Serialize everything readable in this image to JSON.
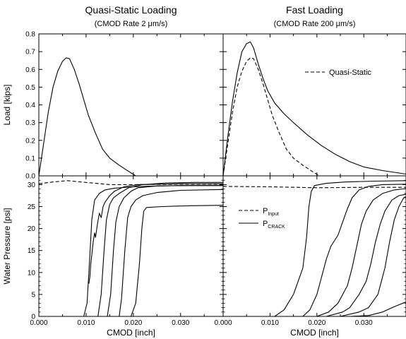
{
  "chart_data": [
    {
      "type": "line",
      "panel": "top-left",
      "title": "Quasi-Static Loading",
      "subtitle": "(CMOD Rate 2 μm/s)",
      "xlabel": "",
      "ylabel": "Load [kips]",
      "xlim": [
        0,
        0.039
      ],
      "ylim": [
        0,
        0.8
      ],
      "yticks": [
        "0.0",
        "0.1",
        "0.2",
        "0.3",
        "0.4",
        "0.5",
        "0.6",
        "0.7",
        "0.8"
      ],
      "series": [
        {
          "style": "solid",
          "points": [
            [
              0.0,
              0.0
            ],
            [
              0.001,
              0.18
            ],
            [
              0.002,
              0.36
            ],
            [
              0.003,
              0.5
            ],
            [
              0.004,
              0.59
            ],
            [
              0.005,
              0.645
            ],
            [
              0.0058,
              0.665
            ],
            [
              0.0065,
              0.66
            ],
            [
              0.0075,
              0.6
            ],
            [
              0.0085,
              0.52
            ],
            [
              0.0095,
              0.43
            ],
            [
              0.0105,
              0.34
            ],
            [
              0.012,
              0.24
            ],
            [
              0.0135,
              0.15
            ],
            [
              0.015,
              0.1
            ],
            [
              0.017,
              0.06
            ],
            [
              0.019,
              0.025
            ],
            [
              0.0205,
              0.0
            ]
          ]
        }
      ]
    },
    {
      "type": "line",
      "panel": "top-right",
      "title": "Fast Loading",
      "subtitle": "(CMOD Rate 200 μm/s)",
      "xlabel": "",
      "ylabel": "",
      "xlim": [
        0,
        0.039
      ],
      "ylim": [
        0,
        0.8
      ],
      "legend": [
        {
          "label": "Quasi-Static",
          "style": "dashed"
        }
      ],
      "series": [
        {
          "style": "solid",
          "points": [
            [
              0.0,
              0.0
            ],
            [
              0.001,
              0.22
            ],
            [
              0.002,
              0.42
            ],
            [
              0.003,
              0.58
            ],
            [
              0.004,
              0.7
            ],
            [
              0.005,
              0.745
            ],
            [
              0.0058,
              0.755
            ],
            [
              0.0065,
              0.72
            ],
            [
              0.0075,
              0.63
            ],
            [
              0.0085,
              0.55
            ],
            [
              0.0095,
              0.48
            ],
            [
              0.011,
              0.41
            ],
            [
              0.013,
              0.35
            ],
            [
              0.015,
              0.3
            ],
            [
              0.018,
              0.23
            ],
            [
              0.021,
              0.17
            ],
            [
              0.024,
              0.12
            ],
            [
              0.027,
              0.08
            ],
            [
              0.03,
              0.05
            ],
            [
              0.034,
              0.03
            ],
            [
              0.039,
              0.01
            ]
          ]
        },
        {
          "name": "Quasi-Static",
          "style": "dashed",
          "points": [
            [
              0.0,
              0.0
            ],
            [
              0.001,
              0.18
            ],
            [
              0.002,
              0.36
            ],
            [
              0.003,
              0.5
            ],
            [
              0.004,
              0.59
            ],
            [
              0.005,
              0.645
            ],
            [
              0.0058,
              0.665
            ],
            [
              0.0065,
              0.66
            ],
            [
              0.0075,
              0.6
            ],
            [
              0.0085,
              0.52
            ],
            [
              0.0095,
              0.43
            ],
            [
              0.0105,
              0.34
            ],
            [
              0.012,
              0.24
            ],
            [
              0.0135,
              0.15
            ],
            [
              0.015,
              0.1
            ],
            [
              0.017,
              0.06
            ],
            [
              0.019,
              0.025
            ],
            [
              0.0205,
              0.0
            ]
          ]
        }
      ]
    },
    {
      "type": "line",
      "panel": "bottom-left",
      "xlabel": "CMOD [inch]",
      "ylabel": "Water Pressure [psi]",
      "xlim": [
        0,
        0.039
      ],
      "ylim": [
        0,
        32
      ],
      "xticks": [
        "0.000",
        "0.010",
        "0.020",
        "0.030"
      ],
      "yticks": [
        "0",
        "5",
        "10",
        "15",
        "20",
        "25",
        "30"
      ],
      "series": [
        {
          "style": "dashed",
          "points": [
            [
              0.0,
              30.2
            ],
            [
              0.003,
              30.6
            ],
            [
              0.006,
              30.9
            ],
            [
              0.01,
              30.5
            ],
            [
              0.015,
              30.0
            ],
            [
              0.02,
              30.0
            ],
            [
              0.03,
              30.1
            ],
            [
              0.039,
              30.1
            ]
          ]
        },
        {
          "style": "solid",
          "points": [
            [
              0.0,
              0.0
            ],
            [
              0.0095,
              0.0
            ],
            [
              0.0102,
              3.0
            ],
            [
              0.0108,
              14.0
            ],
            [
              0.0112,
              22.0
            ],
            [
              0.0118,
              26.5
            ],
            [
              0.0128,
              28.0
            ],
            [
              0.014,
              28.8
            ],
            [
              0.016,
              29.2
            ],
            [
              0.02,
              29.5
            ],
            [
              0.025,
              29.7
            ],
            [
              0.032,
              29.8
            ],
            [
              0.039,
              29.8
            ]
          ]
        },
        {
          "style": "solid",
          "points": [
            [
              0.0106,
              7.5
            ],
            [
              0.0108,
              9.0
            ],
            [
              0.011,
              12.0
            ],
            [
              0.0112,
              14.0
            ],
            [
              0.0115,
              17.0
            ],
            [
              0.0118,
              19.0
            ],
            [
              0.012,
              18.0
            ],
            [
              0.0124,
              21.0
            ],
            [
              0.0128,
              23.5
            ],
            [
              0.0132,
              22.5
            ],
            [
              0.0136,
              25.0
            ],
            [
              0.014,
              26.0
            ],
            [
              0.015,
              27.5
            ],
            [
              0.016,
              28.5
            ],
            [
              0.018,
              29.5
            ],
            [
              0.021,
              30.0
            ],
            [
              0.025,
              30.1
            ],
            [
              0.03,
              30.2
            ],
            [
              0.039,
              30.2
            ]
          ]
        },
        {
          "style": "solid",
          "points": [
            [
              0.0,
              0.0
            ],
            [
              0.0125,
              0.0
            ],
            [
              0.0132,
              5.0
            ],
            [
              0.0138,
              15.0
            ],
            [
              0.0143,
              22.0
            ],
            [
              0.015,
              25.5
            ],
            [
              0.0158,
              27.0
            ],
            [
              0.017,
              28.0
            ],
            [
              0.019,
              29.3
            ],
            [
              0.022,
              30.0
            ],
            [
              0.027,
              30.4
            ],
            [
              0.033,
              30.5
            ],
            [
              0.039,
              30.5
            ]
          ]
        },
        {
          "style": "solid",
          "points": [
            [
              0.0,
              0.0
            ],
            [
              0.0145,
              0.0
            ],
            [
              0.0152,
              5.0
            ],
            [
              0.0158,
              15.0
            ],
            [
              0.0163,
              21.5
            ],
            [
              0.017,
              25.0
            ],
            [
              0.018,
              27.0
            ],
            [
              0.0195,
              28.5
            ],
            [
              0.021,
              29.3
            ],
            [
              0.025,
              29.7
            ],
            [
              0.03,
              29.8
            ],
            [
              0.039,
              29.8
            ]
          ]
        },
        {
          "style": "solid",
          "points": [
            [
              0.0,
              0.0
            ],
            [
              0.017,
              0.0
            ],
            [
              0.0175,
              4.0
            ],
            [
              0.0182,
              15.0
            ],
            [
              0.0188,
              22.5
            ],
            [
              0.0195,
              25.0
            ],
            [
              0.0205,
              26.5
            ],
            [
              0.022,
              27.5
            ],
            [
              0.025,
              28.2
            ],
            [
              0.03,
              28.7
            ],
            [
              0.039,
              28.9
            ]
          ]
        },
        {
          "style": "solid",
          "points": [
            [
              0.0,
              0.0
            ],
            [
              0.0195,
              0.0
            ],
            [
              0.0205,
              3.0
            ],
            [
              0.0213,
              12.0
            ],
            [
              0.0218,
              20.0
            ],
            [
              0.0222,
              24.0
            ],
            [
              0.0228,
              24.8
            ],
            [
              0.026,
              25.0
            ],
            [
              0.032,
              25.2
            ],
            [
              0.039,
              25.3
            ]
          ]
        }
      ]
    },
    {
      "type": "line",
      "panel": "bottom-right",
      "xlabel": "CMOD [inch]",
      "ylabel": "",
      "xlim": [
        0,
        0.039
      ],
      "ylim": [
        0,
        32
      ],
      "xticks": [
        "0.000",
        "0.010",
        "0.020",
        "0.030"
      ],
      "legend": [
        {
          "label": "P",
          "sub": "Input",
          "style": "dashed"
        },
        {
          "label": "P",
          "sub": "CRACK",
          "style": "solid"
        }
      ],
      "series": [
        {
          "name": "PInput",
          "style": "dashed",
          "points": [
            [
              0.0,
              29.6
            ],
            [
              0.01,
              29.5
            ],
            [
              0.02,
              29.3
            ],
            [
              0.03,
              29.4
            ],
            [
              0.039,
              29.4
            ]
          ]
        },
        {
          "style": "solid",
          "points": [
            [
              0.0,
              0.0
            ],
            [
              0.011,
              0.0
            ],
            [
              0.013,
              1.5
            ],
            [
              0.015,
              5.0
            ],
            [
              0.017,
              11.0
            ],
            [
              0.0178,
              18.0
            ],
            [
              0.0183,
              25.0
            ],
            [
              0.0188,
              28.5
            ],
            [
              0.0195,
              29.8
            ],
            [
              0.022,
              30.3
            ],
            [
              0.026,
              30.6
            ],
            [
              0.032,
              30.8
            ],
            [
              0.039,
              30.9
            ]
          ]
        },
        {
          "style": "solid",
          "points": [
            [
              0.0,
              0.0
            ],
            [
              0.017,
              0.0
            ],
            [
              0.0185,
              1.5
            ],
            [
              0.02,
              5.0
            ],
            [
              0.021,
              9.0
            ],
            [
              0.022,
              13.0
            ],
            [
              0.023,
              16.0
            ],
            [
              0.0245,
              18.5
            ],
            [
              0.0255,
              21.5
            ],
            [
              0.0265,
              24.5
            ],
            [
              0.0275,
              27.0
            ],
            [
              0.029,
              28.8
            ],
            [
              0.031,
              29.6
            ],
            [
              0.034,
              30.0
            ],
            [
              0.039,
              30.1
            ]
          ]
        },
        {
          "style": "solid",
          "points": [
            [
              0.0,
              0.0
            ],
            [
              0.02,
              0.0
            ],
            [
              0.0225,
              1.0
            ],
            [
              0.0245,
              3.0
            ],
            [
              0.0265,
              7.0
            ],
            [
              0.0275,
              11.0
            ],
            [
              0.0285,
              16.0
            ],
            [
              0.0295,
              21.0
            ],
            [
              0.0305,
              24.0
            ],
            [
              0.032,
              26.5
            ],
            [
              0.034,
              28.0
            ],
            [
              0.0365,
              28.8
            ],
            [
              0.039,
              29.1
            ]
          ]
        },
        {
          "style": "solid",
          "points": [
            [
              0.0,
              0.0
            ],
            [
              0.022,
              0.0
            ],
            [
              0.0255,
              1.0
            ],
            [
              0.027,
              2.0
            ],
            [
              0.029,
              5.0
            ],
            [
              0.0305,
              8.0
            ],
            [
              0.0315,
              12.0
            ],
            [
              0.0325,
              17.0
            ],
            [
              0.0335,
              21.0
            ],
            [
              0.0345,
              24.0
            ],
            [
              0.036,
              26.5
            ],
            [
              0.0375,
              27.5
            ],
            [
              0.039,
              27.8
            ]
          ]
        },
        {
          "style": "solid",
          "points": [
            [
              0.0,
              0.0
            ],
            [
              0.025,
              0.0
            ],
            [
              0.029,
              1.0
            ],
            [
              0.031,
              2.0
            ],
            [
              0.033,
              5.0
            ],
            [
              0.0345,
              11.0
            ],
            [
              0.0355,
              17.0
            ],
            [
              0.0365,
              22.0
            ],
            [
              0.0375,
              25.0
            ],
            [
              0.0385,
              27.0
            ],
            [
              0.039,
              27.3
            ]
          ]
        },
        {
          "style": "solid",
          "points": [
            [
              0.0,
              0.0
            ],
            [
              0.027,
              0.0
            ],
            [
              0.031,
              0.2
            ],
            [
              0.034,
              1.0
            ],
            [
              0.0365,
              2.2
            ],
            [
              0.039,
              3.3
            ]
          ]
        }
      ]
    }
  ]
}
